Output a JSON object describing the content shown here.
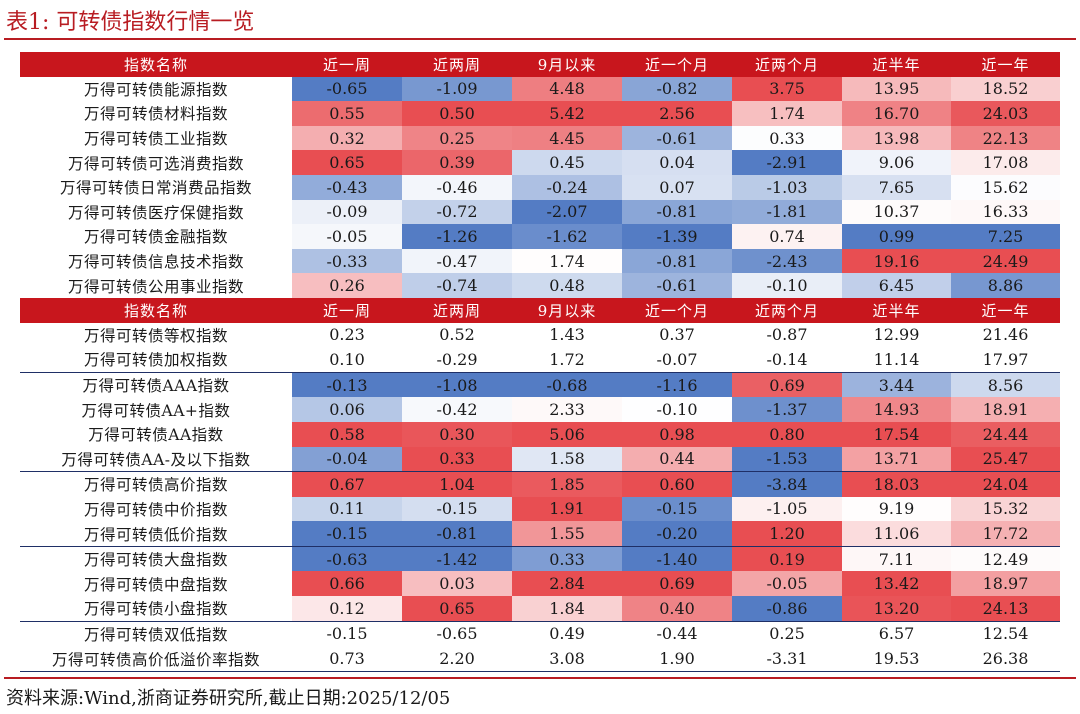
{
  "title": "表1:   可转债指数行情一览",
  "source": "资料来源:Wind,浙商证券研究所,截止日期:2025/12/05",
  "headers": [
    "指数名称",
    "近一周",
    "近两周",
    "9月以来",
    "近一个月",
    "近两个月",
    "近半年",
    "近一年"
  ],
  "colors": {
    "header_red": "#c8161d",
    "title_red": "#b81c22",
    "rule_navy": "#1f2f66"
  },
  "section1": [
    {
      "name": "万得可转债能源指数",
      "values": [
        "-0.65",
        "-1.09",
        "4.48",
        "-0.82",
        "3.75",
        "13.95",
        "18.52"
      ]
    },
    {
      "name": "万得可转债材料指数",
      "values": [
        "0.55",
        "0.50",
        "5.42",
        "2.56",
        "1.74",
        "16.70",
        "24.03"
      ]
    },
    {
      "name": "万得可转债工业指数",
      "values": [
        "0.32",
        "0.25",
        "4.45",
        "-0.61",
        "0.33",
        "13.98",
        "22.13"
      ]
    },
    {
      "name": "万得可转债可选消费指数",
      "values": [
        "0.65",
        "0.39",
        "0.45",
        "0.04",
        "-2.91",
        "9.06",
        "17.08"
      ]
    },
    {
      "name": "万得可转债日常消费品指数",
      "values": [
        "-0.43",
        "-0.46",
        "-0.24",
        "0.07",
        "-1.03",
        "7.65",
        "15.62"
      ]
    },
    {
      "name": "万得可转债医疗保健指数",
      "values": [
        "-0.09",
        "-0.72",
        "-2.07",
        "-0.81",
        "-1.81",
        "10.37",
        "16.33"
      ]
    },
    {
      "name": "万得可转债金融指数",
      "values": [
        "-0.05",
        "-1.26",
        "-1.62",
        "-1.39",
        "0.74",
        "0.99",
        "7.25"
      ]
    },
    {
      "name": "万得可转债信息技术指数",
      "values": [
        "-0.33",
        "-0.47",
        "1.74",
        "-0.81",
        "-2.43",
        "19.16",
        "24.49"
      ]
    },
    {
      "name": "万得可转债公用事业指数",
      "values": [
        "0.26",
        "-0.74",
        "0.48",
        "-0.61",
        "-0.10",
        "6.45",
        "8.86"
      ]
    }
  ],
  "section2": [
    {
      "name": "万得可转债等权指数",
      "values": [
        "0.23",
        "0.52",
        "1.43",
        "0.37",
        "-0.87",
        "12.99",
        "21.46"
      ]
    },
    {
      "name": "万得可转债加权指数",
      "values": [
        "0.10",
        "-0.29",
        "1.72",
        "-0.07",
        "-0.14",
        "11.14",
        "17.97"
      ]
    },
    {
      "name": "万得可转债AAA指数",
      "values": [
        "-0.13",
        "-1.08",
        "-0.68",
        "-1.16",
        "0.69",
        "3.44",
        "8.56"
      ]
    },
    {
      "name": "万得可转债AA+指数",
      "values": [
        "0.06",
        "-0.42",
        "2.33",
        "-0.10",
        "-1.37",
        "14.93",
        "18.91"
      ]
    },
    {
      "name": "万得可转债AA指数",
      "values": [
        "0.58",
        "0.30",
        "5.06",
        "0.98",
        "0.80",
        "17.54",
        "24.44"
      ]
    },
    {
      "name": "万得可转债AA-及以下指数",
      "values": [
        "-0.04",
        "0.33",
        "1.58",
        "0.44",
        "-1.53",
        "13.71",
        "25.47"
      ]
    },
    {
      "name": "万得可转债高价指数",
      "values": [
        "0.67",
        "1.04",
        "1.85",
        "0.60",
        "-3.84",
        "18.03",
        "24.04"
      ]
    },
    {
      "name": "万得可转债中价指数",
      "values": [
        "0.11",
        "-0.15",
        "1.91",
        "-0.15",
        "-1.05",
        "9.19",
        "15.32"
      ]
    },
    {
      "name": "万得可转债低价指数",
      "values": [
        "-0.15",
        "-0.81",
        "1.55",
        "-0.20",
        "1.20",
        "11.06",
        "17.72"
      ]
    },
    {
      "name": "万得可转债大盘指数",
      "values": [
        "-0.63",
        "-1.42",
        "0.33",
        "-1.40",
        "0.19",
        "7.11",
        "12.49"
      ]
    },
    {
      "name": "万得可转债中盘指数",
      "values": [
        "0.66",
        "0.03",
        "2.84",
        "0.69",
        "-0.05",
        "13.42",
        "18.97"
      ]
    },
    {
      "name": "万得可转债小盘指数",
      "values": [
        "0.12",
        "0.65",
        "1.84",
        "0.40",
        "-0.86",
        "13.20",
        "24.13"
      ]
    },
    {
      "name": "万得可转债双低指数",
      "values": [
        "-0.15",
        "-0.65",
        "0.49",
        "-0.44",
        "0.25",
        "6.57",
        "12.54"
      ]
    },
    {
      "name": "万得可转债高价低溢价率指数",
      "values": [
        "0.73",
        "2.20",
        "3.08",
        "1.90",
        "-3.31",
        "19.53",
        "26.38"
      ]
    }
  ]
}
